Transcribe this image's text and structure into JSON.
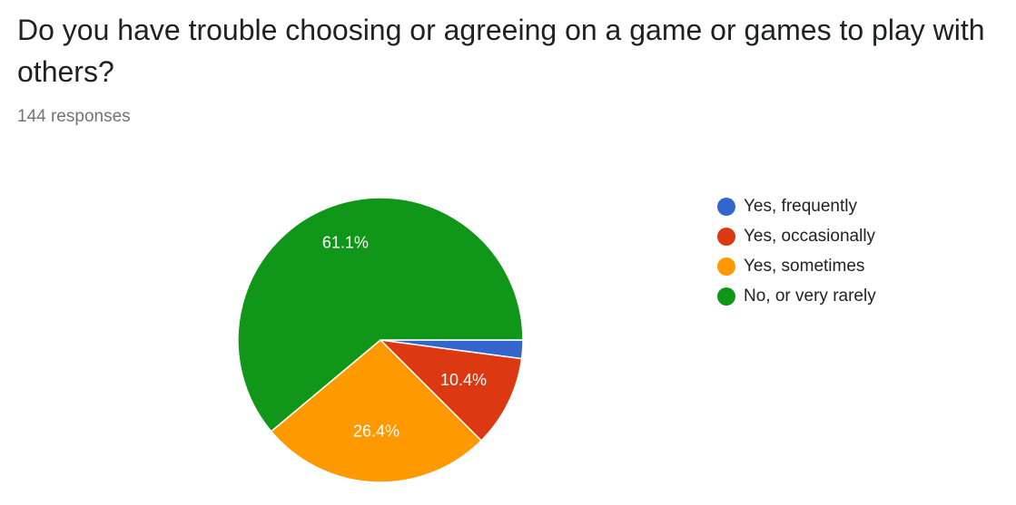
{
  "chart_data": {
    "type": "pie",
    "title": "Do you have trouble choosing or agreeing on a game or games to play with others?",
    "subtitle": "144 responses",
    "categories": [
      "Yes, frequently",
      "Yes, occasionally",
      "Yes, sometimes",
      "No, or very rarely"
    ],
    "values": [
      2.1,
      10.4,
      26.4,
      61.1
    ],
    "value_labels": [
      null,
      "10.4%",
      "26.4%",
      "61.1%"
    ],
    "colors": [
      "#3366cc",
      "#dc3912",
      "#ff9900",
      "#109618"
    ],
    "legend": "right"
  }
}
